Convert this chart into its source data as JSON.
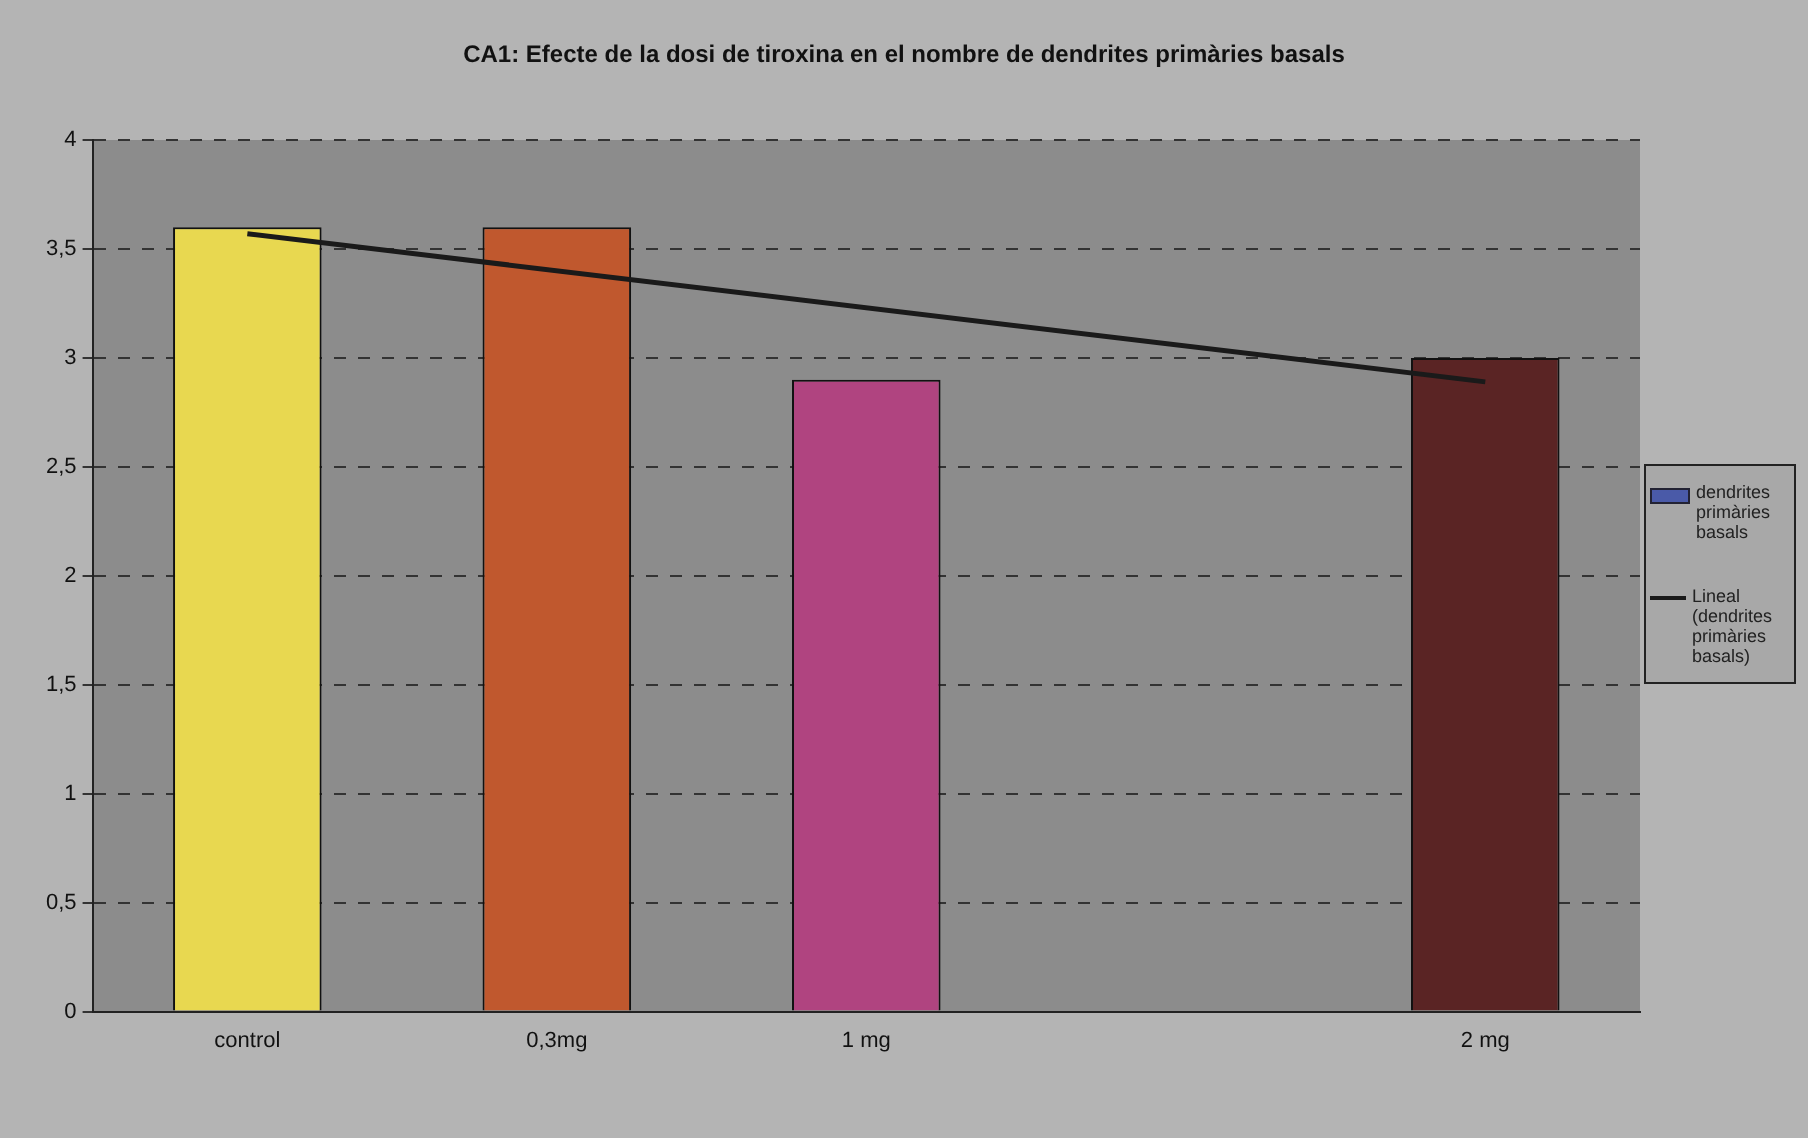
{
  "chart_data": {
    "type": "bar",
    "title": "CA1: Efecte de la dosi de tiroxina en el nombre de dendrites primàries basals",
    "categories": [
      "control",
      "0,3mg",
      "1 mg",
      null,
      "2 mg"
    ],
    "series": [
      {
        "name": "dendrites primàries basals",
        "color": "#4a5aa8",
        "colors": [
          "#e8d850",
          "#c0582e",
          "#b04480",
          null,
          "#5a2424"
        ],
        "values": [
          3.6,
          3.6,
          2.9,
          null,
          3.0
        ]
      },
      {
        "name": "Lineal (dendrites primàries basals)",
        "type": "line",
        "color": "#1a1a1a",
        "values": [
          3.57,
          null,
          null,
          null,
          2.89
        ]
      }
    ],
    "ylim": [
      0,
      4
    ],
    "yticks": [
      0,
      {
        "value": 0.5,
        "label": "0,5"
      },
      1,
      {
        "value": 1.5,
        "label": "1,5"
      },
      2,
      {
        "value": 2.5,
        "label": "2,5"
      },
      3,
      {
        "value": 3.5,
        "label": "3,5"
      },
      4
    ],
    "grid": "y",
    "legend": "right",
    "marker": "none"
  }
}
